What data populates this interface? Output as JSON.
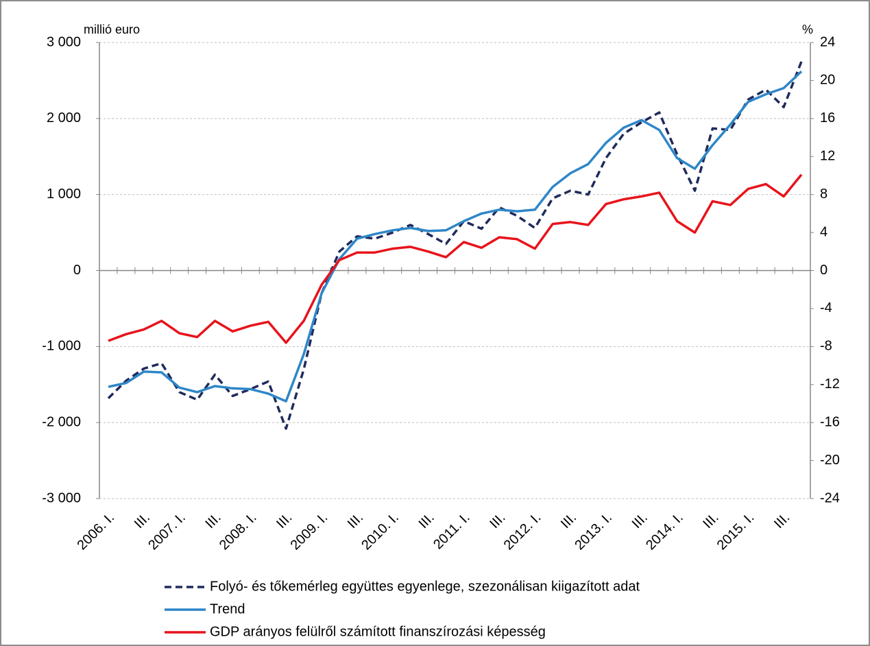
{
  "chart_data": {
    "type": "line",
    "y_label": "millió euro",
    "y2_label": "%",
    "categories": [
      "2006. I.",
      null,
      "III.",
      null,
      "2007. I.",
      null,
      "III.",
      null,
      "2008. I.",
      null,
      "III.",
      null,
      "2009. I.",
      null,
      "III.",
      null,
      "2010. I.",
      null,
      "III.",
      null,
      "2011. I.",
      null,
      "III.",
      null,
      "2012. I.",
      null,
      "III.",
      null,
      "2013. I.",
      null,
      "III.",
      null,
      "2014. I.",
      null,
      "III.",
      null,
      "2015. I.",
      null,
      "III.",
      null
    ],
    "series": [
      {
        "name": "Folyó- és tőkemérleg együttes egyenlege, szezonálisan kiigazított adat",
        "color": "#1f2b5c",
        "dash": true,
        "values": [
          -1680,
          -1450,
          -1290,
          -1220,
          -1600,
          -1700,
          -1370,
          -1650,
          -1560,
          -1460,
          -2080,
          -1300,
          -300,
          250,
          450,
          420,
          500,
          600,
          480,
          350,
          650,
          550,
          830,
          720,
          560,
          950,
          1050,
          1000,
          1480,
          1800,
          1950,
          2080,
          1530,
          1050,
          1870,
          1850,
          2250,
          2380,
          2150,
          2750
        ]
      },
      {
        "name": "Trend",
        "color": "#2e86c8",
        "dash": false,
        "values": [
          -1530,
          -1480,
          -1330,
          -1340,
          -1540,
          -1600,
          -1520,
          -1550,
          -1560,
          -1620,
          -1720,
          -1100,
          -300,
          150,
          420,
          480,
          530,
          560,
          520,
          530,
          650,
          750,
          800,
          780,
          800,
          1100,
          1280,
          1400,
          1680,
          1880,
          1980,
          1850,
          1480,
          1340,
          1650,
          1920,
          2220,
          2320,
          2400,
          2620
        ]
      },
      {
        "name": "GDP arányos felülről számított finanszírozási képesség",
        "color": "#e8131b",
        "dash": false,
        "axis": "y2",
        "values": [
          -7.4,
          -6.7,
          -6.2,
          -5.3,
          -6.6,
          -7.0,
          -5.3,
          -6.4,
          -5.8,
          -5.4,
          -7.6,
          -5.3,
          -1.5,
          1.1,
          1.9,
          1.9,
          2.3,
          2.5,
          2.0,
          1.4,
          3.0,
          2.4,
          3.5,
          3.3,
          2.3,
          4.9,
          5.1,
          4.8,
          7.0,
          7.5,
          7.8,
          8.2,
          5.2,
          4.0,
          7.3,
          6.9,
          8.6,
          9.1,
          7.8,
          10.1
        ]
      }
    ],
    "ylim": [
      -3000,
      3000
    ],
    "yticks": [
      {
        "value": -3000,
        "label": "-3 000"
      },
      {
        "value": -2000,
        "label": "-2 000"
      },
      {
        "value": -1000,
        "label": "-1 000"
      },
      0,
      {
        "value": 1000,
        "label": "1 000"
      },
      {
        "value": 2000,
        "label": "2 000"
      },
      {
        "value": 3000,
        "label": "3 000"
      }
    ],
    "y2lim": [
      -24,
      24
    ],
    "y2ticks": [
      -24,
      -20,
      -16,
      -12,
      -8,
      -4,
      0,
      4,
      8,
      12,
      16,
      20,
      24
    ],
    "grid": true
  }
}
